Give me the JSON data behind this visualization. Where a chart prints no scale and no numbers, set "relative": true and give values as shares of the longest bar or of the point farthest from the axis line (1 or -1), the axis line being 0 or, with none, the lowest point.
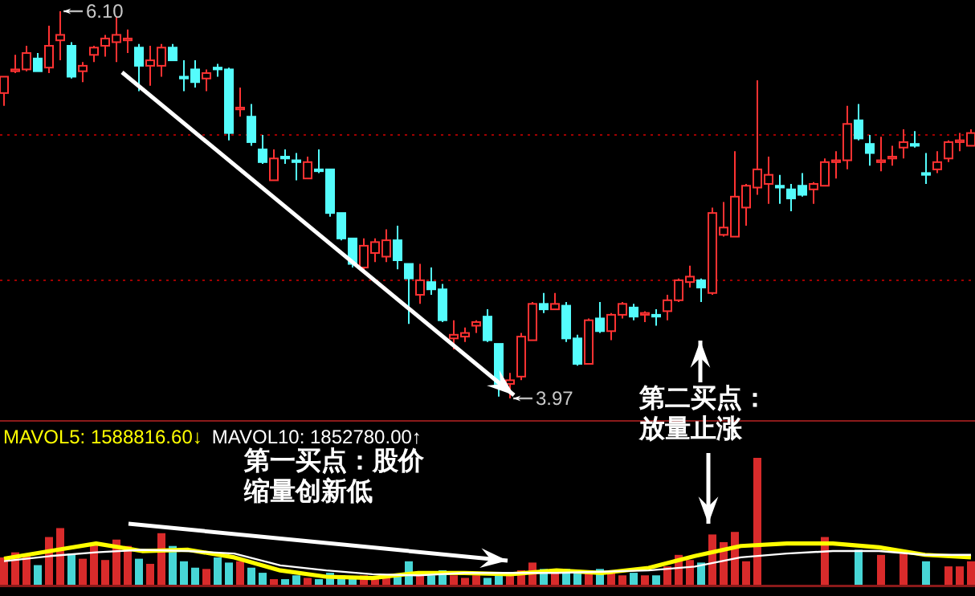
{
  "chart_data": [
    {
      "type": "candlestick",
      "categories": [
        null,
        null,
        null,
        null,
        null,
        null,
        null,
        null,
        null,
        null,
        null,
        null,
        null,
        null,
        null,
        null,
        null,
        null,
        null,
        null,
        null,
        null,
        null,
        null,
        null,
        null,
        null,
        null,
        null,
        null,
        null,
        null,
        null,
        null,
        null,
        null,
        null,
        null,
        null,
        null,
        null,
        null,
        null,
        null,
        null,
        null,
        null,
        null,
        null,
        null,
        null,
        null,
        null,
        null,
        null,
        null,
        null,
        null,
        null,
        null,
        null,
        null,
        null,
        null,
        null,
        null,
        null,
        null,
        null,
        null,
        null,
        null,
        null,
        null,
        null,
        null,
        null,
        null,
        null,
        null,
        null,
        null,
        null,
        null,
        null,
        null,
        null
      ],
      "ohlc": [
        [
          5.65,
          5.74,
          5.58,
          5.74
        ],
        [
          5.77,
          5.86,
          5.76,
          5.78
        ],
        [
          5.78,
          5.91,
          5.77,
          5.87
        ],
        [
          5.84,
          5.87,
          5.77,
          5.77
        ],
        [
          5.79,
          6.02,
          5.76,
          5.91
        ],
        [
          5.94,
          6.1,
          5.83,
          5.97
        ],
        [
          5.91,
          5.93,
          5.73,
          5.74
        ],
        [
          5.77,
          5.82,
          5.71,
          5.8
        ],
        [
          5.86,
          5.91,
          5.82,
          5.9
        ],
        [
          5.91,
          5.97,
          5.85,
          5.95
        ],
        [
          5.93,
          6.07,
          5.82,
          5.97
        ],
        [
          5.94,
          6.0,
          5.87,
          5.95
        ],
        [
          5.9,
          5.92,
          5.66,
          5.8
        ],
        [
          5.8,
          5.91,
          5.69,
          5.83
        ],
        [
          5.8,
          5.92,
          5.74,
          5.9
        ],
        [
          5.9,
          5.92,
          5.83,
          5.83
        ],
        [
          5.74,
          5.83,
          5.66,
          5.73
        ],
        [
          5.78,
          5.83,
          5.68,
          5.71
        ],
        [
          5.73,
          5.78,
          5.66,
          5.76
        ],
        [
          5.79,
          5.81,
          5.74,
          5.78
        ],
        [
          5.78,
          5.79,
          5.39,
          5.43
        ],
        [
          5.56,
          5.68,
          5.52,
          5.57
        ],
        [
          5.52,
          5.59,
          5.36,
          5.38
        ],
        [
          5.34,
          5.42,
          5.26,
          5.27
        ],
        [
          5.17,
          5.34,
          5.17,
          5.29
        ],
        [
          5.3,
          5.34,
          5.26,
          5.29
        ],
        [
          5.28,
          5.32,
          5.17,
          5.27
        ],
        [
          5.18,
          5.3,
          5.18,
          5.27
        ],
        [
          5.23,
          5.34,
          5.21,
          5.22
        ],
        [
          5.23,
          5.23,
          4.97,
          4.99
        ],
        [
          4.99,
          4.99,
          4.84,
          4.85
        ],
        [
          4.85,
          4.85,
          4.69,
          4.71
        ],
        [
          4.69,
          4.85,
          4.67,
          4.81
        ],
        [
          4.77,
          4.85,
          4.72,
          4.83
        ],
        [
          4.75,
          4.9,
          4.72,
          4.84
        ],
        [
          4.84,
          4.92,
          4.68,
          4.73
        ],
        [
          4.71,
          4.71,
          4.38,
          4.63
        ],
        [
          4.54,
          4.71,
          4.49,
          4.62
        ],
        [
          4.61,
          4.69,
          4.54,
          4.57
        ],
        [
          4.57,
          4.6,
          4.39,
          4.4
        ],
        [
          4.3,
          4.4,
          4.24,
          4.32
        ],
        [
          4.31,
          4.36,
          4.28,
          4.33
        ],
        [
          4.37,
          4.4,
          4.33,
          4.39
        ],
        [
          4.42,
          4.46,
          4.28,
          4.29
        ],
        [
          4.27,
          4.27,
          3.98,
          4.05
        ],
        [
          4.05,
          4.11,
          3.97,
          4.07
        ],
        [
          4.09,
          4.33,
          4.07,
          4.31
        ],
        [
          4.29,
          4.5,
          4.29,
          4.49
        ],
        [
          4.49,
          4.55,
          4.44,
          4.46
        ],
        [
          4.46,
          4.55,
          4.46,
          4.49
        ],
        [
          4.48,
          4.5,
          4.28,
          4.3
        ],
        [
          4.3,
          4.32,
          4.15,
          4.16
        ],
        [
          4.16,
          4.41,
          4.16,
          4.4
        ],
        [
          4.41,
          4.5,
          4.33,
          4.34
        ],
        [
          4.34,
          4.44,
          4.29,
          4.43
        ],
        [
          4.43,
          4.5,
          4.41,
          4.49
        ],
        [
          4.47,
          4.49,
          4.4,
          4.42
        ],
        [
          4.43,
          4.45,
          4.39,
          4.44
        ],
        [
          4.43,
          4.46,
          4.37,
          4.42
        ],
        [
          4.45,
          4.54,
          4.4,
          4.51
        ],
        [
          4.51,
          4.63,
          4.5,
          4.62
        ],
        [
          4.61,
          4.7,
          4.58,
          4.64
        ],
        [
          4.62,
          4.63,
          4.5,
          4.58
        ],
        [
          4.55,
          5.02,
          4.54,
          4.99
        ],
        [
          4.87,
          5.05,
          4.86,
          4.91
        ],
        [
          4.86,
          5.33,
          4.86,
          5.08
        ],
        [
          5.02,
          5.15,
          4.92,
          5.14
        ],
        [
          5.13,
          5.72,
          5.09,
          5.23
        ],
        [
          5.15,
          5.3,
          5.04,
          5.2
        ],
        [
          5.14,
          5.2,
          5.04,
          5.13
        ],
        [
          5.12,
          5.15,
          5.0,
          5.07
        ],
        [
          5.14,
          5.21,
          5.08,
          5.09
        ],
        [
          5.12,
          5.16,
          5.04,
          5.15
        ],
        [
          5.14,
          5.29,
          5.14,
          5.27
        ],
        [
          5.27,
          5.33,
          5.18,
          5.28
        ],
        [
          5.28,
          5.58,
          5.23,
          5.48
        ],
        [
          5.5,
          5.59,
          5.39,
          5.4
        ],
        [
          5.37,
          5.42,
          5.25,
          5.32
        ],
        [
          5.27,
          5.41,
          5.22,
          5.28
        ],
        [
          5.29,
          5.36,
          5.25,
          5.3
        ],
        [
          5.35,
          5.45,
          5.29,
          5.38
        ],
        [
          5.37,
          5.44,
          5.35,
          5.36
        ],
        [
          5.21,
          5.32,
          5.15,
          5.2
        ],
        [
          5.23,
          5.33,
          5.21,
          5.27
        ],
        [
          5.29,
          5.39,
          5.27,
          5.38
        ],
        [
          5.38,
          5.43,
          5.33,
          5.39
        ],
        [
          5.36,
          5.45,
          5.36,
          5.43
        ]
      ],
      "colors": [
        "#ff3232",
        "#ff3232",
        "#ff3232",
        "#54fcfc",
        "#ff3232",
        "#ff3232",
        "#54fcfc",
        "#ff3232",
        "#ff3232",
        "#ff3232",
        "#ff3232",
        "#ff3232",
        "#54fcfc",
        "#ff3232",
        "#ff3232",
        "#54fcfc",
        "#54fcfc",
        "#54fcfc",
        "#ff3232",
        "#54fcfc",
        "#54fcfc",
        "#ff3232",
        "#54fcfc",
        "#54fcfc",
        "#ff3232",
        "#54fcfc",
        "#54fcfc",
        "#ff3232",
        "#54fcfc",
        "#54fcfc",
        "#54fcfc",
        "#54fcfc",
        "#ff3232",
        "#ff3232",
        "#ff3232",
        "#54fcfc",
        "#54fcfc",
        "#ff3232",
        "#54fcfc",
        "#54fcfc",
        "#ff3232",
        "#ff3232",
        "#ff3232",
        "#54fcfc",
        "#54fcfc",
        "#ff3232",
        "#ff3232",
        "#ff3232",
        "#54fcfc",
        "#ff3232",
        "#54fcfc",
        "#54fcfc",
        "#ff3232",
        "#54fcfc",
        "#ff3232",
        "#ff3232",
        "#54fcfc",
        "#ff3232",
        "#54fcfc",
        "#ff3232",
        "#ff3232",
        "#ff3232",
        "#54fcfc",
        "#ff3232",
        "#ff3232",
        "#ff3232",
        "#ff3232",
        "#ff3232",
        "#ff3232",
        "#54fcfc",
        "#54fcfc",
        "#54fcfc",
        "#ff3232",
        "#ff3232",
        "#ff3232",
        "#ff3232",
        "#54fcfc",
        "#54fcfc",
        "#ff3232",
        "#ff3232",
        "#ff3232",
        "#54fcfc",
        "#54fcfc",
        "#ff3232",
        "#ff3232",
        "#ff3232",
        "#ff3232"
      ],
      "yticks": [
        {
          "value": 5.42,
          "label": null
        },
        {
          "value": 4.62,
          "label": null
        }
      ],
      "grid": "y",
      "annotations": [
        "6.10",
        "3.97",
        "第二买点：",
        "放量止涨",
        "第一买点：股价",
        "缩量创新低"
      ]
    },
    {
      "type": "bar",
      "relative": true,
      "categories": [
        null,
        null,
        null,
        null,
        null,
        null,
        null,
        null,
        null,
        null,
        null,
        null,
        null,
        null,
        null,
        null,
        null,
        null,
        null,
        null,
        null,
        null,
        null,
        null,
        null,
        null,
        null,
        null,
        null,
        null,
        null,
        null,
        null,
        null,
        null,
        null,
        null,
        null,
        null,
        null,
        null,
        null,
        null,
        null,
        null,
        null,
        null,
        null,
        null,
        null,
        null,
        null,
        null,
        null,
        null,
        null,
        null,
        null,
        null,
        null,
        null,
        null,
        null,
        null,
        null,
        null,
        null,
        null,
        null,
        null,
        null,
        null,
        null,
        null,
        null,
        null,
        null,
        null,
        null,
        null,
        null,
        null,
        null,
        null,
        null,
        null,
        null
      ],
      "colors": [
        "#ff3232",
        "#ff3232",
        "#ff3232",
        "#54fcfc",
        "#ff3232",
        "#ff3232",
        "#54fcfc",
        "#ff3232",
        "#ff3232",
        "#ff3232",
        "#ff3232",
        "#ff3232",
        "#54fcfc",
        "#ff3232",
        "#ff3232",
        "#54fcfc",
        "#54fcfc",
        "#54fcfc",
        "#ff3232",
        "#54fcfc",
        "#54fcfc",
        "#ff3232",
        "#54fcfc",
        "#54fcfc",
        "#ff3232",
        "#54fcfc",
        "#54fcfc",
        "#ff3232",
        "#54fcfc",
        "#54fcfc",
        "#54fcfc",
        "#54fcfc",
        "#ff3232",
        "#ff3232",
        "#ff3232",
        "#54fcfc",
        "#54fcfc",
        "#ff3232",
        "#54fcfc",
        "#54fcfc",
        "#ff3232",
        "#ff3232",
        "#ff3232",
        "#54fcfc",
        "#54fcfc",
        "#ff3232",
        "#ff3232",
        "#ff3232",
        "#54fcfc",
        "#ff3232",
        "#54fcfc",
        "#54fcfc",
        "#ff3232",
        "#54fcfc",
        "#ff3232",
        "#ff3232",
        "#54fcfc",
        "#ff3232",
        "#54fcfc",
        "#ff3232",
        "#ff3232",
        "#ff3232",
        "#54fcfc",
        "#ff3232",
        "#ff3232",
        "#ff3232",
        "#ff3232",
        "#ff3232",
        null,
        null,
        null,
        null,
        null,
        "#ff3232",
        null,
        null,
        "#54fcfc",
        null,
        "#ff3232",
        null,
        "#ff3232",
        null,
        "#54fcfc",
        null,
        "#ff3232",
        "#ff3232",
        "#ff3232"
      ],
      "values": [
        0.22,
        0.26,
        0.24,
        0.16,
        0.38,
        0.45,
        0.25,
        0.21,
        0.33,
        0.2,
        0.36,
        0.31,
        0.21,
        0.17,
        0.41,
        0.31,
        0.19,
        0.14,
        0.13,
        0.22,
        0.18,
        0.19,
        0.14,
        0.1,
        0.05,
        0.05,
        0.08,
        0.06,
        0.05,
        0.1,
        0.08,
        0.07,
        0.08,
        0.07,
        0.08,
        0.07,
        0.19,
        0.08,
        0.08,
        0.12,
        0.08,
        0.06,
        0.08,
        0.06,
        0.1,
        0.1,
        0.12,
        0.18,
        0.13,
        0.12,
        0.13,
        0.12,
        0.1,
        0.13,
        0.1,
        0.08,
        0.1,
        0.08,
        0.08,
        0.15,
        0.24,
        0.2,
        0.18,
        0.4,
        0.34,
        0.42,
        0.19,
        1,
        null,
        null,
        null,
        null,
        null,
        0.38,
        null,
        null,
        0.28,
        null,
        0.24,
        null,
        0.25,
        null,
        0.19,
        null,
        0.15,
        0.15,
        0.19
      ]
    },
    {
      "type": "line",
      "relative": true,
      "categories": [
        null,
        null,
        null,
        null,
        null,
        null,
        null,
        null,
        null,
        null,
        null,
        null,
        null,
        null,
        null,
        null,
        null,
        null,
        null,
        null,
        null,
        null
      ],
      "series": [
        {
          "name": "MAVOL5: 1588816.60↓",
          "color": "#ffff00",
          "values": [
            0.64,
            0.82,
            1,
            0.82,
            0.85,
            0.67,
            0.36,
            0.21,
            0.18,
            0.3,
            0.3,
            0.27,
            0.36,
            0.3,
            0.42,
            0.7,
            0.94,
            1,
            1,
            0.91,
            0.73,
            0.67
          ]
        },
        {
          "name": "MAVOL10: 1852780.00↑",
          "color": "#ffffff",
          "values": [
            0.58,
            0.7,
            0.79,
            0.85,
            0.82,
            0.76,
            0.48,
            0.36,
            0.27,
            0.24,
            0.3,
            0.3,
            0.3,
            0.33,
            0.36,
            0.45,
            0.67,
            0.76,
            0.82,
            0.82,
            0.73,
            0.73
          ]
        }
      ]
    }
  ]
}
